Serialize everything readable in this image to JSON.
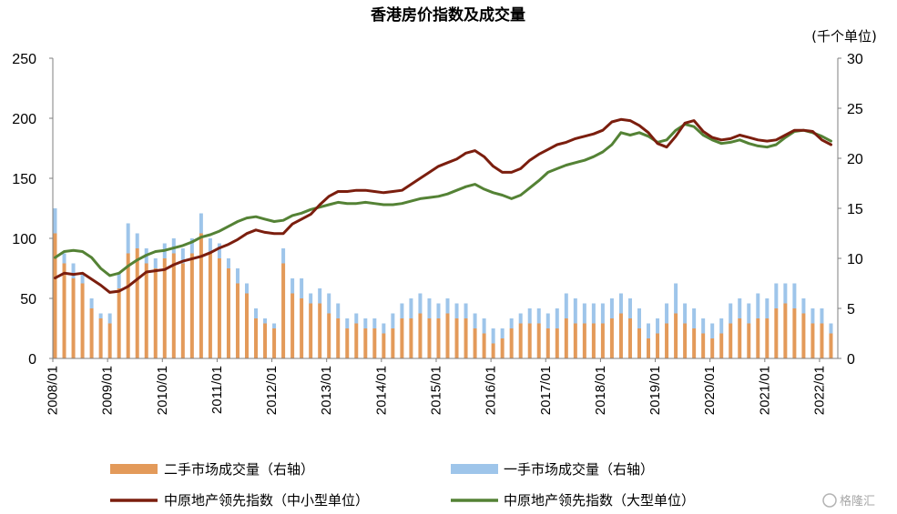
{
  "chart_data": {
    "type": "bar",
    "title": "香港房价指数及成交量",
    "right_axis_unit": "(千个单位)",
    "left_ylim": [
      0,
      250
    ],
    "right_ylim": [
      0,
      30
    ],
    "left_ticks": [
      "0",
      "50",
      "100",
      "150",
      "200",
      "250"
    ],
    "right_ticks": [
      "0",
      "5",
      "10",
      "15",
      "20",
      "25",
      "30"
    ],
    "x_ticks": [
      "2008/01",
      "2009/01",
      "2010/01",
      "2011/01",
      "2012/01",
      "2013/01",
      "2014/01",
      "2015/01",
      "2016/01",
      "2017/01",
      "2018/01",
      "2019/01",
      "2020/01",
      "2021/01",
      "2022/01"
    ],
    "x_range": [
      "2008-01",
      "2022-04"
    ],
    "grid": false,
    "legend_position": "bottom",
    "legend": [
      {
        "label": "二手市场成交量（右轴）",
        "kind": "bar"
      },
      {
        "label": "一手市场成交量（右轴）",
        "kind": "bar"
      },
      {
        "label": "中原地产领先指数（中小型单位）",
        "kind": "line"
      },
      {
        "label": "中原地产领先指数（大型单位）",
        "kind": "line"
      }
    ],
    "series": [
      {
        "name": "二手市场成交量（右轴）",
        "axis": "right",
        "type": "bar",
        "color": "#e39a5a",
        "months": [
          "2008-01",
          "2008-03",
          "2008-05",
          "2008-07",
          "2008-09",
          "2008-11",
          "2009-01",
          "2009-03",
          "2009-05",
          "2009-07",
          "2009-09",
          "2009-11",
          "2010-01",
          "2010-03",
          "2010-05",
          "2010-07",
          "2010-09",
          "2010-11",
          "2011-01",
          "2011-03",
          "2011-05",
          "2011-07",
          "2011-09",
          "2011-11",
          "2012-01",
          "2012-03",
          "2012-05",
          "2012-07",
          "2012-09",
          "2012-11",
          "2013-01",
          "2013-03",
          "2013-05",
          "2013-07",
          "2013-09",
          "2013-11",
          "2014-01",
          "2014-03",
          "2014-05",
          "2014-07",
          "2014-09",
          "2014-11",
          "2015-01",
          "2015-03",
          "2015-05",
          "2015-07",
          "2015-09",
          "2015-11",
          "2016-01",
          "2016-03",
          "2016-05",
          "2016-07",
          "2016-09",
          "2016-11",
          "2017-01",
          "2017-03",
          "2017-05",
          "2017-07",
          "2017-09",
          "2017-11",
          "2018-01",
          "2018-03",
          "2018-05",
          "2018-07",
          "2018-09",
          "2018-11",
          "2019-01",
          "2019-03",
          "2019-05",
          "2019-07",
          "2019-09",
          "2019-11",
          "2020-01",
          "2020-03",
          "2020-05",
          "2020-07",
          "2020-09",
          "2020-11",
          "2021-01",
          "2021-03",
          "2021-05",
          "2021-07",
          "2021-09",
          "2021-11",
          "2022-01",
          "2022-03"
        ],
        "values": [
          12.5,
          9.5,
          8.0,
          7.5,
          5.0,
          4.0,
          3.5,
          7.0,
          10.5,
          11.0,
          9.5,
          9.0,
          10.0,
          10.5,
          9.5,
          10.5,
          12.5,
          10.5,
          10.0,
          9.0,
          7.5,
          6.5,
          4.0,
          3.5,
          3.0,
          9.5,
          6.5,
          6.0,
          5.5,
          5.5,
          4.5,
          4.0,
          3.0,
          3.5,
          3.0,
          3.0,
          2.5,
          3.0,
          4.0,
          4.0,
          4.5,
          4.0,
          4.0,
          4.5,
          4.0,
          4.0,
          3.0,
          2.5,
          1.5,
          2.0,
          3.0,
          3.5,
          3.5,
          3.5,
          3.0,
          3.0,
          4.0,
          3.5,
          3.5,
          3.5,
          3.5,
          4.0,
          4.5,
          4.0,
          3.0,
          2.0,
          2.5,
          3.5,
          4.5,
          3.5,
          3.0,
          2.5,
          2.0,
          2.5,
          3.5,
          4.0,
          3.5,
          4.0,
          4.0,
          5.0,
          5.5,
          5.0,
          4.5,
          3.5,
          3.5,
          2.5
        ]
      },
      {
        "name": "一手市场成交量（右轴）",
        "axis": "right",
        "type": "bar",
        "color": "#9ec5ea",
        "months": [
          "2008-01",
          "2008-03",
          "2008-05",
          "2008-07",
          "2008-09",
          "2008-11",
          "2009-01",
          "2009-03",
          "2009-05",
          "2009-07",
          "2009-09",
          "2009-11",
          "2010-01",
          "2010-03",
          "2010-05",
          "2010-07",
          "2010-09",
          "2010-11",
          "2011-01",
          "2011-03",
          "2011-05",
          "2011-07",
          "2011-09",
          "2011-11",
          "2012-01",
          "2012-03",
          "2012-05",
          "2012-07",
          "2012-09",
          "2012-11",
          "2013-01",
          "2013-03",
          "2013-05",
          "2013-07",
          "2013-09",
          "2013-11",
          "2014-01",
          "2014-03",
          "2014-05",
          "2014-07",
          "2014-09",
          "2014-11",
          "2015-01",
          "2015-03",
          "2015-05",
          "2015-07",
          "2015-09",
          "2015-11",
          "2016-01",
          "2016-03",
          "2016-05",
          "2016-07",
          "2016-09",
          "2016-11",
          "2017-01",
          "2017-03",
          "2017-05",
          "2017-07",
          "2017-09",
          "2017-11",
          "2018-01",
          "2018-03",
          "2018-05",
          "2018-07",
          "2018-09",
          "2018-11",
          "2019-01",
          "2019-03",
          "2019-05",
          "2019-07",
          "2019-09",
          "2019-11",
          "2020-01",
          "2020-03",
          "2020-05",
          "2020-07",
          "2020-09",
          "2020-11",
          "2021-01",
          "2021-03",
          "2021-05",
          "2021-07",
          "2021-09",
          "2021-11",
          "2022-01",
          "2022-03"
        ],
        "values": [
          2.5,
          1.0,
          1.5,
          1.0,
          1.0,
          0.5,
          1.0,
          1.5,
          3.0,
          1.5,
          1.5,
          1.0,
          1.5,
          1.5,
          1.5,
          1.5,
          2.0,
          1.5,
          1.5,
          1.0,
          1.5,
          1.0,
          1.0,
          0.5,
          0.5,
          1.5,
          1.5,
          2.0,
          1.0,
          1.5,
          2.0,
          1.5,
          1.0,
          1.0,
          1.0,
          1.0,
          1.0,
          1.5,
          1.5,
          2.0,
          2.0,
          2.0,
          1.5,
          1.5,
          1.5,
          1.5,
          1.5,
          1.5,
          1.5,
          1.0,
          1.0,
          1.0,
          1.5,
          1.5,
          1.5,
          2.0,
          2.5,
          2.5,
          2.0,
          2.0,
          2.0,
          2.0,
          2.0,
          2.0,
          2.0,
          1.5,
          1.5,
          2.0,
          3.0,
          2.0,
          2.0,
          1.5,
          1.5,
          1.5,
          2.0,
          2.0,
          2.0,
          2.5,
          2.0,
          2.5,
          2.0,
          2.5,
          1.5,
          1.5,
          1.5,
          1.0
        ]
      },
      {
        "name": "中原地产领先指数（中小型单位）",
        "axis": "left",
        "type": "line",
        "color": "#7b1e0e",
        "months": [
          "2008-01",
          "2008-03",
          "2008-05",
          "2008-07",
          "2008-09",
          "2008-11",
          "2009-01",
          "2009-03",
          "2009-05",
          "2009-07",
          "2009-09",
          "2009-11",
          "2010-01",
          "2010-03",
          "2010-05",
          "2010-07",
          "2010-09",
          "2010-11",
          "2011-01",
          "2011-03",
          "2011-05",
          "2011-07",
          "2011-09",
          "2011-11",
          "2012-01",
          "2012-03",
          "2012-05",
          "2012-07",
          "2012-09",
          "2012-11",
          "2013-01",
          "2013-03",
          "2013-05",
          "2013-07",
          "2013-09",
          "2013-11",
          "2014-01",
          "2014-03",
          "2014-05",
          "2014-07",
          "2014-09",
          "2014-11",
          "2015-01",
          "2015-03",
          "2015-05",
          "2015-07",
          "2015-09",
          "2015-11",
          "2016-01",
          "2016-03",
          "2016-05",
          "2016-07",
          "2016-09",
          "2016-11",
          "2017-01",
          "2017-03",
          "2017-05",
          "2017-07",
          "2017-09",
          "2017-11",
          "2018-01",
          "2018-03",
          "2018-05",
          "2018-07",
          "2018-09",
          "2018-11",
          "2019-01",
          "2019-03",
          "2019-05",
          "2019-07",
          "2019-09",
          "2019-11",
          "2020-01",
          "2020-03",
          "2020-05",
          "2020-07",
          "2020-09",
          "2020-11",
          "2021-01",
          "2021-03",
          "2021-05",
          "2021-07",
          "2021-09",
          "2021-11",
          "2022-01",
          "2022-03"
        ],
        "values": [
          67,
          71,
          70,
          71,
          66,
          61,
          55,
          56,
          60,
          66,
          72,
          73,
          74,
          78,
          81,
          83,
          85,
          88,
          92,
          95,
          99,
          104,
          107,
          105,
          104,
          104,
          112,
          116,
          120,
          128,
          135,
          139,
          139,
          140,
          140,
          139,
          138,
          139,
          140,
          145,
          150,
          155,
          160,
          163,
          166,
          171,
          173,
          168,
          160,
          155,
          155,
          158,
          165,
          170,
          174,
          178,
          180,
          183,
          185,
          187,
          190,
          197,
          199,
          198,
          194,
          188,
          179,
          176,
          185,
          196,
          198,
          189,
          184,
          182,
          183,
          186,
          184,
          182,
          181,
          182,
          186,
          190,
          190,
          189,
          182,
          178
        ]
      },
      {
        "name": "中原地产领先指数（大型单位）",
        "axis": "left",
        "type": "line",
        "color": "#548235",
        "months": [
          "2008-01",
          "2008-03",
          "2008-05",
          "2008-07",
          "2008-09",
          "2008-11",
          "2009-01",
          "2009-03",
          "2009-05",
          "2009-07",
          "2009-09",
          "2009-11",
          "2010-01",
          "2010-03",
          "2010-05",
          "2010-07",
          "2010-09",
          "2010-11",
          "2011-01",
          "2011-03",
          "2011-05",
          "2011-07",
          "2011-09",
          "2011-11",
          "2012-01",
          "2012-03",
          "2012-05",
          "2012-07",
          "2012-09",
          "2012-11",
          "2013-01",
          "2013-03",
          "2013-05",
          "2013-07",
          "2013-09",
          "2013-11",
          "2014-01",
          "2014-03",
          "2014-05",
          "2014-07",
          "2014-09",
          "2014-11",
          "2015-01",
          "2015-03",
          "2015-05",
          "2015-07",
          "2015-09",
          "2015-11",
          "2016-01",
          "2016-03",
          "2016-05",
          "2016-07",
          "2016-09",
          "2016-11",
          "2017-01",
          "2017-03",
          "2017-05",
          "2017-07",
          "2017-09",
          "2017-11",
          "2018-01",
          "2018-03",
          "2018-05",
          "2018-07",
          "2018-09",
          "2018-11",
          "2019-01",
          "2019-03",
          "2019-05",
          "2019-07",
          "2019-09",
          "2019-11",
          "2020-01",
          "2020-03",
          "2020-05",
          "2020-07",
          "2020-09",
          "2020-11",
          "2021-01",
          "2021-03",
          "2021-05",
          "2021-07",
          "2021-09",
          "2021-11",
          "2022-01",
          "2022-03"
        ],
        "values": [
          84,
          89,
          90,
          89,
          84,
          75,
          69,
          71,
          77,
          82,
          86,
          89,
          90,
          92,
          94,
          97,
          101,
          103,
          106,
          110,
          114,
          117,
          118,
          116,
          114,
          115,
          119,
          121,
          124,
          126,
          128,
          130,
          129,
          129,
          130,
          129,
          128,
          128,
          129,
          131,
          133,
          134,
          135,
          137,
          140,
          143,
          145,
          141,
          138,
          136,
          133,
          136,
          142,
          148,
          155,
          158,
          161,
          163,
          165,
          168,
          172,
          178,
          188,
          186,
          188,
          185,
          180,
          182,
          190,
          195,
          193,
          186,
          182,
          179,
          180,
          182,
          179,
          177,
          176,
          178,
          184,
          189,
          190,
          188,
          185,
          181
        ]
      }
    ]
  },
  "watermark": {
    "text": "格隆汇"
  }
}
